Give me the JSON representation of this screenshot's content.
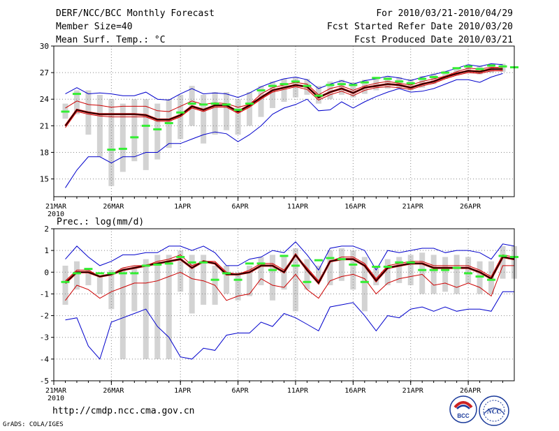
{
  "header": {
    "title": "DERF/NCC/BCC Monthly Forecast",
    "member_size": "Member Size=40",
    "variable": "Mean Surf. Temp.: °C",
    "period": "For 2010/03/21-2010/04/29",
    "fcst_started": "Fcst Started Refer Date 2010/03/20",
    "fcst_produced": "Fcst Produced Date 2010/03/21"
  },
  "footer": {
    "url": "http://cmdp.ncc.cma.gov.cn",
    "grads": "GrADS: COLA/IGES",
    "logo_bcc": "BCC",
    "logo_ncc": "NCC"
  },
  "colors": {
    "ensemble_mean": "#000000",
    "control_run": "#cc0000",
    "envelope": "#0000cc",
    "deterministic": "#33ee33",
    "spread_bar": "#d3d3d3",
    "grid": "#888888"
  },
  "chart_data": [
    {
      "type": "line",
      "title": "Mean Surf. Temp.: °C",
      "x_tick_labels": [
        "21MAR",
        "26MAR",
        "1APR",
        "6APR",
        "11APR",
        "16APR",
        "21APR",
        "26APR"
      ],
      "x_tick_days": [
        1,
        6,
        12,
        17,
        22,
        27,
        32,
        37
      ],
      "year_label": "2010",
      "xlim": [
        1,
        41
      ],
      "ylim": [
        13,
        30
      ],
      "y_ticks": [
        15,
        18,
        21,
        24,
        27,
        30
      ],
      "x": [
        2,
        3,
        4,
        5,
        6,
        7,
        8,
        9,
        10,
        11,
        12,
        13,
        14,
        15,
        16,
        17,
        18,
        19,
        20,
        21,
        22,
        23,
        24,
        25,
        26,
        27,
        28,
        29,
        30,
        31,
        32,
        33,
        34,
        35,
        36,
        37,
        38,
        39,
        40
      ],
      "series": [
        {
          "name": "max",
          "values": [
            24.6,
            25.3,
            24.6,
            24.7,
            24.6,
            24.4,
            24.4,
            24.8,
            24.0,
            23.9,
            24.6,
            25.2,
            24.6,
            24.7,
            24.6,
            24.2,
            24.7,
            25.4,
            25.9,
            26.3,
            26.5,
            26.2,
            25.2,
            25.7,
            26.1,
            25.7,
            26.1,
            26.3,
            26.6,
            26.4,
            26.1,
            26.5,
            26.8,
            27.1,
            27.5,
            27.9,
            27.7,
            28.0,
            27.9
          ]
        },
        {
          "name": "upper",
          "values": [
            23.0,
            23.8,
            23.4,
            23.3,
            23.1,
            23.2,
            23.2,
            23.2,
            22.7,
            22.6,
            23.2,
            23.8,
            23.4,
            23.6,
            23.5,
            23.1,
            23.4,
            24.6,
            25.3,
            25.6,
            25.9,
            25.7,
            24.5,
            25.2,
            25.5,
            25.0,
            25.5,
            25.8,
            26.0,
            25.8,
            25.6,
            26.0,
            26.3,
            26.6,
            27.1,
            27.5,
            27.4,
            27.6,
            27.6
          ]
        },
        {
          "name": "ensemble_mean",
          "values": [
            21.0,
            22.8,
            22.5,
            22.3,
            22.3,
            22.3,
            22.3,
            22.2,
            21.7,
            21.7,
            22.2,
            23.2,
            22.8,
            23.3,
            23.3,
            22.6,
            23.3,
            24.2,
            25.0,
            25.3,
            25.6,
            25.4,
            24.2,
            24.8,
            25.2,
            24.7,
            25.3,
            25.5,
            25.7,
            25.6,
            25.3,
            25.7,
            26.0,
            26.5,
            26.9,
            27.2,
            27.1,
            27.4,
            27.4
          ]
        },
        {
          "name": "lower",
          "values": [
            20.8,
            22.6,
            22.3,
            22.1,
            22.0,
            22.0,
            22.0,
            22.0,
            21.5,
            21.5,
            22.0,
            23.0,
            22.6,
            23.1,
            23.1,
            22.4,
            23.1,
            24.0,
            24.8,
            25.1,
            25.4,
            25.1,
            23.9,
            24.5,
            24.9,
            24.4,
            25.0,
            25.3,
            25.4,
            25.3,
            25.1,
            25.5,
            25.8,
            26.3,
            26.7,
            27.0,
            26.9,
            27.2,
            27.2
          ]
        },
        {
          "name": "min",
          "values": [
            14.0,
            16.0,
            17.5,
            17.5,
            16.8,
            17.5,
            17.5,
            18.0,
            18.0,
            19.0,
            19.0,
            19.5,
            20.0,
            20.3,
            20.1,
            19.2,
            20.0,
            21.0,
            22.3,
            23.0,
            23.4,
            24.0,
            22.7,
            22.8,
            23.7,
            23.0,
            23.7,
            24.3,
            24.8,
            25.2,
            24.8,
            24.9,
            25.2,
            25.7,
            26.2,
            26.2,
            25.9,
            26.5,
            26.9
          ]
        }
      ],
      "deterministic": {
        "x": [
          2,
          3,
          6,
          7,
          8,
          9,
          10,
          11,
          12,
          13,
          14,
          15,
          16,
          17,
          18,
          19,
          20,
          21,
          22,
          23,
          24,
          25,
          26,
          27,
          28,
          29,
          30,
          31,
          32,
          33,
          34,
          35,
          36,
          37,
          38,
          39,
          40,
          41
        ],
        "values": [
          22.6,
          24.6,
          18.3,
          18.4,
          19.7,
          21.0,
          20.6,
          21.3,
          22.5,
          23.5,
          23.4,
          23.5,
          23.4,
          22.8,
          23.5,
          25.0,
          25.5,
          25.7,
          26.0,
          25.5,
          24.4,
          25.6,
          25.7,
          25.6,
          25.9,
          26.4,
          26.3,
          26.0,
          25.8,
          26.3,
          26.5,
          27.0,
          27.5,
          27.7,
          27.4,
          27.8,
          27.7,
          27.6
        ]
      },
      "spread_bars": {
        "x": [
          2,
          3,
          4,
          5,
          6,
          7,
          8,
          9,
          10,
          11,
          12,
          13,
          14,
          15,
          16,
          17,
          18,
          19,
          20,
          21,
          22,
          23,
          24,
          25,
          26,
          27,
          28,
          29,
          30,
          31,
          32,
          33,
          34,
          35,
          36,
          37,
          38,
          39,
          40
        ],
        "low": [
          21.8,
          22.3,
          20.0,
          17.5,
          14.2,
          15.8,
          17.0,
          16.0,
          17.2,
          18.5,
          19.5,
          21.0,
          19.0,
          20.0,
          20.5,
          20.0,
          21.0,
          22.0,
          23.0,
          23.7,
          24.2,
          24.5,
          23.5,
          24.0,
          24.5,
          24.2,
          24.6,
          25.0,
          25.2,
          25.2,
          25.0,
          25.3,
          25.7,
          26.3,
          26.7,
          27.0,
          26.8,
          27.0,
          27.1
        ],
        "high": [
          23.5,
          25.0,
          25.0,
          24.5,
          24.0,
          23.5,
          24.0,
          24.0,
          23.5,
          24.0,
          24.5,
          25.5,
          24.5,
          24.8,
          24.8,
          24.0,
          24.8,
          25.5,
          26.0,
          26.3,
          26.5,
          26.3,
          25.5,
          26.0,
          26.2,
          25.9,
          26.2,
          26.5,
          26.6,
          26.5,
          26.3,
          26.6,
          26.9,
          27.2,
          27.6,
          27.9,
          27.8,
          28.0,
          28.0
        ]
      }
    },
    {
      "type": "line",
      "title": "Prec.: log(mm/d)",
      "x_tick_labels": [
        "21MAR",
        "26MAR",
        "1APR",
        "6APR",
        "11APR",
        "16APR",
        "21APR",
        "26APR"
      ],
      "x_tick_days": [
        1,
        6,
        12,
        17,
        22,
        27,
        32,
        37
      ],
      "year_label": "2010",
      "xlim": [
        1,
        41
      ],
      "ylim": [
        -5,
        2
      ],
      "y_ticks": [
        -5,
        -4,
        -3,
        -2,
        -1,
        0,
        1,
        2
      ],
      "x": [
        2,
        3,
        4,
        5,
        6,
        7,
        8,
        9,
        10,
        11,
        12,
        13,
        14,
        15,
        16,
        17,
        18,
        19,
        20,
        21,
        22,
        23,
        24,
        25,
        26,
        27,
        28,
        29,
        30,
        31,
        32,
        33,
        34,
        35,
        36,
        37,
        38,
        39,
        40,
        41
      ],
      "series": [
        {
          "name": "max",
          "values": [
            0.6,
            1.2,
            0.7,
            0.3,
            0.5,
            0.8,
            0.8,
            0.9,
            0.9,
            1.2,
            1.2,
            1.0,
            1.2,
            0.9,
            0.3,
            0.3,
            0.6,
            0.7,
            1.0,
            0.9,
            1.4,
            0.8,
            0.1,
            1.1,
            1.2,
            1.2,
            1.0,
            0.1,
            1.0,
            0.9,
            1.0,
            1.1,
            1.1,
            0.9,
            1.0,
            1.0,
            0.9,
            0.6,
            1.3,
            1.2
          ]
        },
        {
          "name": "upper",
          "values": [
            -0.4,
            0.1,
            0.1,
            -0.2,
            -0.1,
            0.2,
            0.3,
            0.3,
            0.5,
            0.6,
            0.8,
            0.3,
            0.5,
            0.5,
            0.0,
            -0.1,
            0.1,
            0.4,
            0.4,
            0.1,
            0.8,
            0.2,
            -0.4,
            0.5,
            0.7,
            0.7,
            0.4,
            -0.3,
            0.3,
            0.4,
            0.5,
            0.5,
            0.3,
            0.3,
            0.3,
            0.3,
            0.1,
            -0.2,
            0.8,
            0.7
          ]
        },
        {
          "name": "ensemble_mean",
          "values": [
            -0.5,
            0.0,
            0.0,
            -0.2,
            -0.1,
            0.1,
            0.2,
            0.3,
            0.4,
            0.5,
            0.6,
            0.2,
            0.5,
            0.4,
            -0.1,
            -0.1,
            0.0,
            0.3,
            0.3,
            0.0,
            0.8,
            0.1,
            -0.5,
            0.5,
            0.6,
            0.6,
            0.3,
            -0.4,
            0.2,
            0.3,
            0.4,
            0.4,
            0.2,
            0.2,
            0.2,
            0.2,
            0.0,
            -0.3,
            0.7,
            0.6
          ]
        },
        {
          "name": "control",
          "values": [
            -1.3,
            -0.6,
            -0.8,
            -1.2,
            -0.9,
            -0.7,
            -0.5,
            -0.5,
            -0.4,
            -0.2,
            0.0,
            -0.3,
            -0.4,
            -0.6,
            -1.3,
            -1.1,
            -1.0,
            -0.3,
            -0.6,
            -0.7,
            -0.1,
            -0.8,
            -1.2,
            -0.4,
            -0.2,
            -0.1,
            -0.3,
            -1.0,
            -0.5,
            -0.3,
            -0.2,
            -0.1,
            -0.6,
            -0.5,
            -0.7,
            -0.5,
            -0.7,
            -1.1,
            0.3,
            0.3
          ]
        },
        {
          "name": "min",
          "values": [
            -2.2,
            -2.1,
            -3.4,
            -4.0,
            -2.3,
            -2.1,
            -1.9,
            -1.7,
            -2.5,
            -3.0,
            -3.9,
            -4.0,
            -3.5,
            -3.6,
            -2.9,
            -2.8,
            -2.8,
            -2.3,
            -2.5,
            -1.9,
            -2.1,
            -2.4,
            -2.7,
            -1.6,
            -1.5,
            -1.4,
            -2.0,
            -2.7,
            -2.0,
            -2.1,
            -1.7,
            -1.6,
            -1.8,
            -1.6,
            -1.8,
            -1.7,
            -1.7,
            -1.8,
            -0.9,
            -0.9
          ]
        }
      ],
      "deterministic": {
        "x": [
          2,
          3,
          4,
          5,
          6,
          7,
          8,
          9,
          10,
          11,
          12,
          13,
          14,
          15,
          16,
          17,
          18,
          19,
          20,
          21,
          22,
          23,
          24,
          25,
          26,
          27,
          28,
          29,
          30,
          31,
          32,
          33,
          34,
          35,
          36,
          37,
          38,
          39,
          40,
          41
        ],
        "values": [
          -0.45,
          -0.05,
          0.15,
          -0.05,
          -0.05,
          -0.05,
          -0.05,
          0.3,
          0.35,
          0.4,
          0.7,
          0.45,
          0.45,
          -0.35,
          -0.05,
          -0.35,
          0.4,
          0.4,
          0.1,
          0.75,
          0.3,
          -0.45,
          0.55,
          0.65,
          0.6,
          0.35,
          -0.45,
          0.25,
          0.25,
          0.45,
          0.45,
          0.1,
          0.1,
          0.1,
          0.2,
          -0.05,
          -0.2,
          -0.35,
          0.75,
          0.7
        ]
      },
      "spread_bars": {
        "x": [
          2,
          3,
          4,
          5,
          6,
          7,
          8,
          9,
          10,
          11,
          12,
          13,
          14,
          15,
          16,
          17,
          18,
          19,
          20,
          21,
          22,
          23,
          24,
          25,
          26,
          27,
          28,
          29,
          30,
          31,
          32,
          33,
          34,
          35,
          36,
          37,
          38,
          39,
          40,
          41
        ],
        "low": [
          -1.5,
          -0.8,
          -0.6,
          -1.0,
          -1.7,
          -4.0,
          -1.8,
          -4.0,
          -4.0,
          -4.0,
          -0.9,
          -1.9,
          -1.5,
          -1.5,
          -1.0,
          -1.3,
          -1.1,
          -0.6,
          -1.3,
          -0.8,
          -1.8,
          -0.8,
          -0.4,
          -0.6,
          -0.4,
          -0.8,
          -1.8,
          -0.6,
          -0.6,
          -0.5,
          -0.6,
          -1.0,
          -1.0,
          -0.9,
          -1.0,
          -0.5,
          -1.0,
          -1.0,
          -0.3,
          -0.3
        ],
        "high": [
          0.3,
          0.5,
          0.2,
          -0.2,
          0.1,
          0.2,
          0.3,
          0.6,
          0.8,
          0.8,
          1.0,
          0.8,
          0.8,
          0.3,
          0.3,
          0.0,
          0.3,
          0.7,
          0.8,
          0.8,
          1.1,
          0.6,
          0.3,
          1.0,
          1.1,
          1.0,
          0.7,
          0.2,
          0.6,
          0.7,
          0.8,
          0.9,
          0.8,
          0.7,
          0.8,
          0.7,
          0.5,
          0.5,
          1.2,
          1.2
        ]
      }
    }
  ]
}
